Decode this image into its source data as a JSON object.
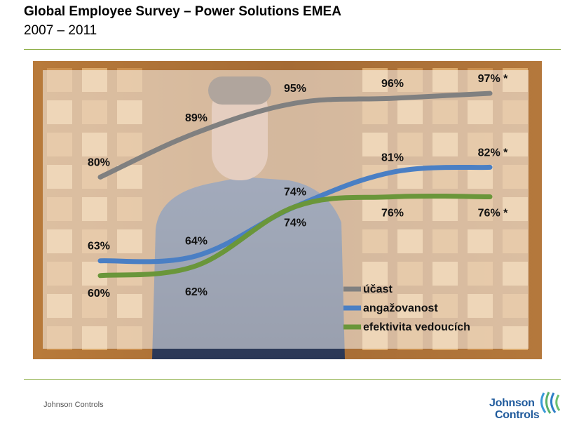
{
  "header": {
    "title": "Global Employee Survey – Power Solutions EMEA",
    "subtitle": "2007 – 2011"
  },
  "footer": {
    "company": "Johnson Controls",
    "logo_line1": "Johnson",
    "logo_line2": "Controls"
  },
  "chart_data": {
    "type": "line",
    "title": "",
    "xlabel": "",
    "ylabel": "",
    "x": [
      "1",
      "2",
      "3",
      "4",
      "5"
    ],
    "ylim": [
      50,
      100
    ],
    "grid": false,
    "legend": "bottom-right",
    "series": [
      {
        "name": "účast",
        "color": "#808080",
        "values": [
          80,
          89,
          95,
          96,
          97
        ],
        "labels": [
          "80%",
          "89%",
          "95%",
          "96%",
          "97% *"
        ]
      },
      {
        "name": "angažovanost",
        "color": "#4a7fc4",
        "values": [
          63,
          64,
          74,
          81,
          82
        ],
        "labels": [
          "63%",
          "64%",
          "74%",
          "81%",
          "82% *"
        ]
      },
      {
        "name": "efektivita vedoucích",
        "color": "#6a963a",
        "values": [
          60,
          62,
          74,
          76,
          76
        ],
        "labels": [
          "60%",
          "62%",
          "74%",
          "76%",
          "76% *"
        ]
      }
    ]
  }
}
